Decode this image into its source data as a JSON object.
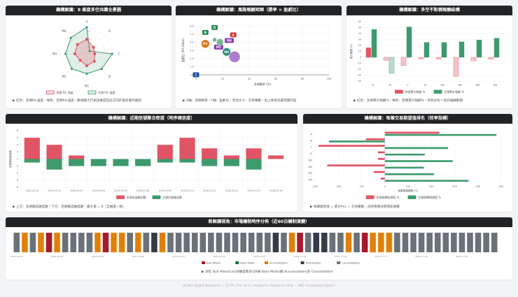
{
  "colors": {
    "long": "#e05565",
    "short": "#3d9a6c",
    "bull": "#a61b2b",
    "bear": "#1e6b34",
    "accum": "#e07f0a",
    "distrib": "#343c4a",
    "consol": "#6b7178",
    "header": "#222325"
  },
  "panels": {
    "radar": {
      "title": "機構解讀：8 維度多空共識全景圖",
      "note": "▶ 紅色：多頭P/L強度｜綠色：空頭P/L強度｜數值越大代表該維度在此方向的歷史獲利越高"
    },
    "scatter": {
      "title": "機構解讀：風險報酬矩陣（勝率 × 盈虧比）",
      "note": "▶ X軸：多頭勝率｜Y軸：盈虧比｜泡泡大小：交易筆數｜右上象限為最佳獲利區"
    },
    "asym": {
      "title": "機構解讀：多空不對稱報酬結構",
      "note": "▶ 紅色：多頭累計報酬%｜綠色：空頭累計報酬%｜同色淡化＝反向報酬虧損"
    },
    "density": {
      "title": "機構解讀：近期信號聚合密度（時序確信度）",
      "note": "▶ 上方：多頭確認維度數｜下方：空頭確認維度數｜最大值 = 8（全維度一致）"
    },
    "expect": {
      "title": "機構解讀：每筆交易期望值排名（效率指標）",
      "note": "▶ 每筆期望值 = 累計PnL ÷ 交易筆數｜反映策略效率而非規模"
    },
    "timeline": {
      "title": "新解讀視角：市場機制時序分佈（近60日機制演變）",
      "note": "▶ 深紅 Bull Attack(≥5/8維度看多)|深綠 Bear Mode|橘 Accumulation|灰 Consolidation"
    }
  },
  "footer": "AI Dev Quant Research — 2376 | Pro V4.2 | Academic Research Only — Not Investment Advice",
  "chart_data": [
    {
      "type": "radar",
      "axes": [
        "A",
        "B",
        "C",
        "D",
        "M1",
        "M2",
        "M3",
        "M4"
      ],
      "rmax": 100,
      "ticks": [
        "20",
        "50",
        "80"
      ],
      "series": [
        {
          "name": "多頭 P/L 強度",
          "values": [
            55,
            35,
            30,
            40,
            45,
            35,
            45,
            50
          ]
        },
        {
          "name": "空頭 P/L 強度",
          "values": [
            100,
            15,
            95,
            80,
            75,
            80,
            80,
            85
          ]
        }
      ],
      "legend": "bottom"
    },
    {
      "type": "scatter",
      "xlabel": "多頭勝率 (%)",
      "ylabel": "盈虧比 (P/L Ratio)",
      "xlim": [
        0,
        100
      ],
      "ylim": [
        0,
        6
      ],
      "xticks": [
        "0",
        "20",
        "40",
        "60",
        "80",
        "100"
      ],
      "yticks": [
        "0.0",
        "1.0",
        "2.0",
        "3.0",
        "4.0",
        "5.0",
        "6.0"
      ],
      "points": [
        {
          "label": "D",
          "x": 14,
          "y": 5.8,
          "color": "#2e8a55",
          "size": 4
        },
        {
          "label": "B",
          "x": 7,
          "y": 5.2,
          "color": "#2e8a55",
          "size": 4
        },
        {
          "label": "A",
          "x": 28,
          "y": 4.9,
          "color": "#d63a3a",
          "size": 4
        },
        {
          "label": "M4",
          "x": 25,
          "y": 4.2,
          "color": "#8a3fb0",
          "size": 5
        },
        {
          "label": "M2",
          "x": 7,
          "y": 3.8,
          "color": "#e07010",
          "size": 6
        },
        {
          "label": "M1",
          "x": 17,
          "y": 3.4,
          "color": "#8a3fb0",
          "size": 5
        },
        {
          "label": "M3",
          "x": 23,
          "y": 2.8,
          "color": "#2a8f7a",
          "size": 6
        },
        {
          "label": "C",
          "x": 0,
          "y": 0,
          "color": "#1f4aa0",
          "size": 4
        },
        {
          "label": "",
          "x": 14,
          "y": 4.3,
          "color": "#5aa57a",
          "size": 3
        },
        {
          "label": "",
          "x": 18,
          "y": 4.0,
          "color": "#5aa57a",
          "size": 5
        },
        {
          "label": "",
          "x": 29,
          "y": 2.2,
          "color": "#9a5cc0",
          "size": 8
        }
      ]
    },
    {
      "type": "bar",
      "categories": [
        "A",
        "B",
        "C",
        "D",
        "M1",
        "M2",
        "M3",
        "M4"
      ],
      "ylabel": "累計報酬 (%)",
      "ylim": [
        -40,
        60
      ],
      "yticks": [
        "-40",
        "-30",
        "-20",
        "-10",
        "0",
        "10",
        "20",
        "30",
        "40",
        "50",
        "60"
      ],
      "series": [
        {
          "name": "多頭累計報酬 %",
          "values": [
            16,
            -5,
            -14,
            -3,
            -3,
            -32,
            -6,
            -3
          ]
        },
        {
          "name": "空頭累計報酬 %",
          "values": [
            47,
            -27,
            51,
            25,
            25,
            26,
            29,
            32
          ]
        }
      ],
      "legend": "bottom"
    },
    {
      "type": "bar",
      "stacked": "diverging",
      "ylabel": "信號確認維度數",
      "ylim": [
        -8,
        8
      ],
      "yticks": [
        "8",
        "6",
        "4",
        "2",
        "0",
        "2",
        "4",
        "6",
        "8"
      ],
      "categories": [
        "2026-02-26",
        "2026-03-02",
        "2026-03-03",
        "2026-03-04",
        "2026-03-05",
        "2026-03-06",
        "2026-03-09",
        "2026-03-10",
        "2026-03-11",
        "2026-03-12",
        "2026-03-13",
        "2026-03-16"
      ],
      "series": [
        {
          "name": "多頭信號確認數",
          "values": [
            6,
            4,
            1,
            0,
            0,
            0,
            4,
            6,
            3,
            1,
            3,
            1
          ]
        },
        {
          "name": "空頭信號確認數",
          "values": [
            1,
            3,
            2,
            2,
            2,
            2,
            1,
            1,
            2,
            2,
            3,
            0
          ]
        }
      ],
      "legend": "bottom"
    },
    {
      "type": "bar",
      "orientation": "horizontal",
      "categories": [
        "A",
        "B",
        "C",
        "D",
        "M1",
        "M2",
        "M3",
        "M4"
      ],
      "xlabel": "每筆期望報酬 (%)",
      "xlim": [
        -300,
        500
      ],
      "xticks": [
        "-300",
        "-200",
        "-100",
        "0",
        "100",
        "200",
        "300",
        "400",
        "500"
      ],
      "series": [
        {
          "name": "多頭每筆期望值 %",
          "values": [
            235,
            -82,
            -285,
            -30,
            -30,
            -248,
            -48,
            -18
          ]
        },
        {
          "name": "空頭每筆期望值 %",
          "values": [
            480,
            -240,
            272,
            172,
            292,
            168,
            212,
            360
          ]
        }
      ],
      "legend": "bottom"
    },
    {
      "type": "timeline",
      "regimes": [
        "Bull Attack",
        "Bear Mode",
        "Accumulation",
        "Distribution",
        "Consolidation"
      ],
      "sequence": "COCOBOCCCCOBOOCOCDOCCCCCCCCCCCCCDCOBCDDCCOCBOOOCCCCCCCCCCCCC",
      "codes": {
        "B": "Bull Attack",
        "R": "Bear Mode",
        "O": "Accumulation",
        "D": "Distribution",
        "C": "Consolidation"
      },
      "date_labels": [
        "2025-09-15",
        "2025-09-22",
        "2025-09-29",
        "2025-10-06",
        "2025-10-13",
        "2025-10-20",
        "2025-10-27",
        "2025-11-03",
        "2025-11-10",
        "2025-11-17",
        "2025-11-24",
        "2025-12-01"
      ],
      "legend": "bottom"
    }
  ]
}
